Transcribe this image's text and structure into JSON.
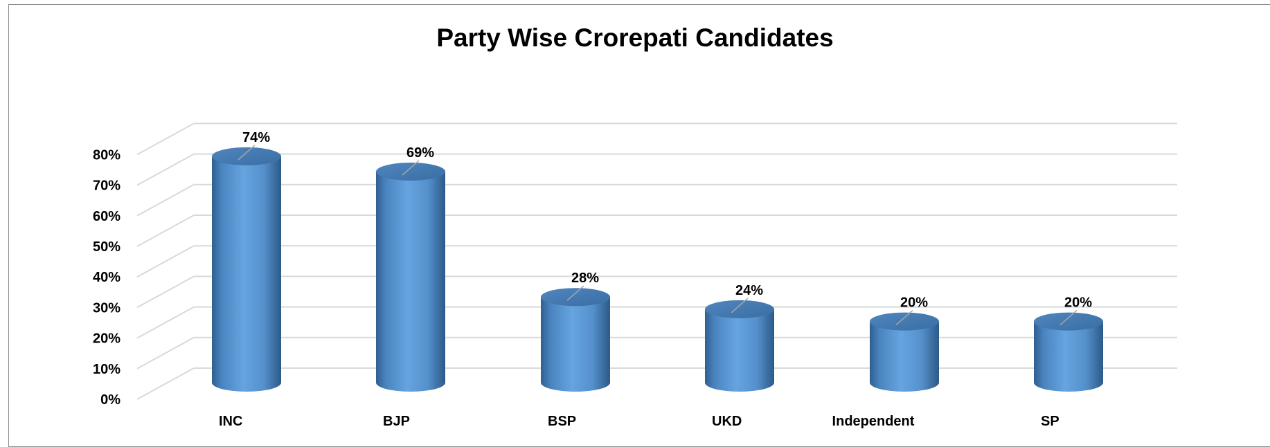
{
  "chart_data": {
    "type": "bar",
    "title": "Party Wise Crorepati Candidates",
    "categories": [
      "INC",
      "BJP",
      "BSP",
      "UKD",
      "Independent",
      "SP"
    ],
    "values": [
      74,
      69,
      28,
      24,
      20,
      20
    ],
    "data_labels": [
      "74%",
      "69%",
      "28%",
      "24%",
      "20%",
      "20%"
    ],
    "y_ticks": [
      "0%",
      "10%",
      "20%",
      "30%",
      "40%",
      "50%",
      "60%",
      "70%",
      "80%"
    ],
    "ylim": [
      0,
      80
    ],
    "grid": true,
    "style": "3d-cylinder",
    "bar_color": "#5b9bd5",
    "legend": "none"
  }
}
